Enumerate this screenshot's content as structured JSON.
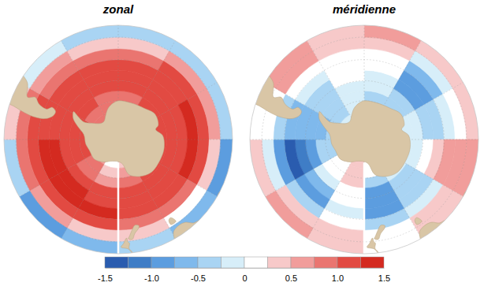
{
  "chart_data": {
    "type": "polar_map",
    "lat_lim": [
      -90,
      -35
    ],
    "lat_edges": [
      -80,
      -75,
      -70,
      -65,
      -60,
      -55,
      -50,
      -45,
      -40,
      -35
    ],
    "lon_edges": [
      0,
      30,
      60,
      90,
      120,
      150,
      180,
      210,
      240,
      270,
      300,
      330,
      360
    ],
    "lat_grid": [
      -80,
      -70,
      -60,
      -50,
      -40
    ],
    "lon_grid": [
      0,
      30,
      60,
      90,
      120,
      150,
      180,
      210,
      240,
      270,
      300,
      330
    ],
    "maps": [
      {
        "title": "zonal",
        "values": [
          [
            0.8,
            0.8,
            0.8,
            0.8,
            0.7,
            0.3,
            0.2,
            0.6,
            0.8,
            0.9,
            0.8,
            0.8
          ],
          [
            0.9,
            0.9,
            0.9,
            0.9,
            0.8,
            0.5,
            0.4,
            0.8,
            1.0,
            1.1,
            0.9,
            0.9
          ],
          [
            0.9,
            1.0,
            1.0,
            1.0,
            1.0,
            0.8,
            0.7,
            0.9,
            1.1,
            1.2,
            1.0,
            0.9
          ],
          [
            1.0,
            1.1,
            1.1,
            1.1,
            1.1,
            1.0,
            1.0,
            1.1,
            1.2,
            1.2,
            1.1,
            1.0
          ],
          [
            1.1,
            1.2,
            1.2,
            1.2,
            1.1,
            1.1,
            1.2,
            1.3,
            1.3,
            1.2,
            1.1,
            1.0
          ],
          [
            1.1,
            1.2,
            1.3,
            1.3,
            1.2,
            1.1,
            1.3,
            1.4,
            1.3,
            1.2,
            1.0,
            1.0
          ],
          [
            0.9,
            1.0,
            1.2,
            1.1,
            0.9,
            0.9,
            1.1,
            1.2,
            1.2,
            1.1,
            0.8,
            0.8
          ],
          [
            0.4,
            0.5,
            0.6,
            0.4,
            0.2,
            0.3,
            0.4,
            0.6,
            0.8,
            0.9,
            0.5,
            0.3
          ],
          [
            -0.4,
            -0.4,
            -0.5,
            -1.0,
            -0.7,
            -0.5,
            -0.6,
            -1.0,
            -0.3,
            0.3,
            -0.1,
            -0.4
          ]
        ]
      },
      {
        "title": "méridienne",
        "values": [
          [
            -0.1,
            0.0,
            0.0,
            -0.1,
            0.0,
            0.2,
            0.3,
            0.1,
            -0.3,
            -0.4,
            -0.2,
            -0.1
          ],
          [
            -0.2,
            -0.1,
            -0.1,
            -0.2,
            -0.1,
            0.1,
            0.3,
            0.1,
            -0.4,
            -0.5,
            -0.3,
            -0.2
          ],
          [
            -0.3,
            -0.3,
            -0.1,
            -0.2,
            -0.2,
            -0.3,
            0.3,
            0.0,
            -0.5,
            -0.6,
            -0.4,
            -0.2
          ],
          [
            -0.2,
            -0.5,
            -0.2,
            -0.1,
            -0.4,
            -0.8,
            0.2,
            -0.2,
            -0.8,
            -0.7,
            -0.5,
            -0.1
          ],
          [
            -0.1,
            -0.8,
            -0.3,
            0.1,
            -0.5,
            -1.0,
            0.0,
            -0.6,
            -1.1,
            -0.7,
            -0.3,
            0.0
          ],
          [
            0.0,
            -0.9,
            -0.4,
            0.3,
            -0.4,
            -0.8,
            -0.1,
            -1.0,
            -1.3,
            -0.6,
            -0.1,
            0.1
          ],
          [
            0.2,
            -0.7,
            -0.2,
            0.5,
            -0.1,
            -0.4,
            0.0,
            -0.5,
            -0.9,
            -0.3,
            0.2,
            0.2
          ],
          [
            0.4,
            -0.2,
            0.2,
            0.6,
            0.3,
            0.0,
            0.3,
            0.3,
            -0.2,
            0.1,
            0.5,
            0.3
          ],
          [
            0.5,
            0.4,
            0.3,
            0.6,
            0.4,
            0.1,
            0.4,
            0.6,
            0.3,
            0.2,
            0.6,
            0.4
          ]
        ]
      }
    ],
    "colorbar": {
      "lim": [
        -1.5,
        1.5
      ],
      "levels": [
        -1.5,
        -1.25,
        -1.0,
        -0.75,
        -0.5,
        -0.25,
        0,
        0.25,
        0.5,
        0.75,
        1.0,
        1.25,
        1.5
      ],
      "colors": [
        "#2a5caf",
        "#3f7dc6",
        "#5c9ddf",
        "#7fb9ec",
        "#a9d4f3",
        "#d7eef9",
        "#ffffff",
        "#f7c9c9",
        "#f19d9b",
        "#ea7570",
        "#e24a42",
        "#d42a20"
      ],
      "ticks": [
        -1.5,
        {
          "value": -1.0,
          "label": "-1.0"
        },
        -0.5,
        0,
        0.5,
        {
          "value": 1.0,
          "label": "1.0"
        },
        1.5
      ]
    }
  }
}
